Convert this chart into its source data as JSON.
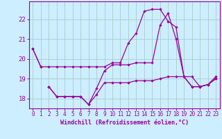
{
  "xlabel": "Windchill (Refroidissement éolien,°C)",
  "bg_color": "#cceeff",
  "line_color": "#990099",
  "grid_color": "#aacccc",
  "x": [
    0,
    1,
    2,
    3,
    4,
    5,
    6,
    7,
    8,
    9,
    10,
    11,
    12,
    13,
    14,
    15,
    16,
    17,
    18,
    19,
    20,
    21,
    22,
    23
  ],
  "line1": [
    20.5,
    19.6,
    null,
    null,
    null,
    null,
    null,
    null,
    null,
    null,
    null,
    null,
    null,
    null,
    null,
    null,
    null,
    null,
    null,
    null,
    null,
    null,
    null,
    null
  ],
  "line2": [
    null,
    null,
    18.6,
    18.1,
    18.1,
    18.1,
    18.1,
    17.7,
    18.2,
    18.8,
    18.8,
    18.8,
    18.8,
    18.9,
    18.9,
    18.9,
    19.0,
    19.1,
    19.1,
    19.1,
    18.6,
    18.6,
    18.7,
    19.0
  ],
  "line3": [
    null,
    null,
    18.6,
    18.1,
    18.1,
    18.1,
    18.1,
    17.7,
    18.5,
    19.4,
    19.7,
    19.7,
    19.7,
    19.8,
    19.8,
    19.8,
    21.7,
    22.3,
    21.0,
    19.1,
    18.6,
    18.6,
    18.7,
    19.0
  ],
  "line4": [
    20.5,
    19.6,
    19.6,
    19.6,
    19.6,
    19.6,
    19.6,
    19.6,
    19.6,
    19.6,
    19.8,
    19.8,
    20.8,
    21.3,
    22.4,
    22.5,
    22.5,
    21.9,
    21.6,
    19.1,
    19.1,
    18.6,
    18.7,
    19.1
  ],
  "ylim": [
    17.5,
    22.9
  ],
  "yticks": [
    18,
    19,
    20,
    21,
    22
  ],
  "xticks": [
    0,
    1,
    2,
    3,
    4,
    5,
    6,
    7,
    8,
    9,
    10,
    11,
    12,
    13,
    14,
    15,
    16,
    17,
    18,
    19,
    20,
    21,
    22,
    23
  ]
}
